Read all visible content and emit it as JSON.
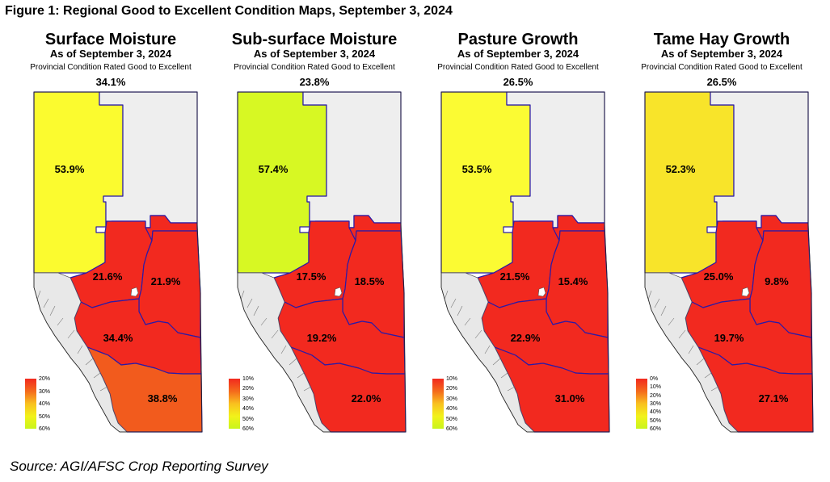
{
  "figure_title": "Figure 1: Regional Good to Excellent Condition Maps, September 3, 2024",
  "source": "Source: AGI/AFSC Crop Reporting Survey",
  "colors": {
    "red": "#f2291f",
    "orange": "#f25b1d",
    "no_data": "#eeeeee",
    "mountains": "#e8e8e8",
    "border": "#2a1aa8",
    "legend_gradient": [
      "#f2291f",
      "#f46a1c",
      "#f9c01f",
      "#f2f21a",
      "#c8f51c"
    ]
  },
  "maps": [
    {
      "title": "Surface Moisture",
      "date": "As of September 3, 2024",
      "note": "Provincial Condition Rated Good to Excellent",
      "total": "34.1%",
      "region_colors": {
        "northwest": "#fbfb2f",
        "northeast": "#eeeeee",
        "northeast_central": "#f2291f",
        "central": "#f2291f",
        "east_central": "#f2291f",
        "south_central": "#f2291f",
        "south": "#f25b1d"
      },
      "regions": {
        "northwest": "53.9%",
        "central": "21.6%",
        "east_central": "21.9%",
        "south_central": "34.4%",
        "south": "38.8%"
      },
      "legend": [
        "20%",
        "30%",
        "40%",
        "50%",
        "60%"
      ]
    },
    {
      "title": "Sub-surface Moisture",
      "date": "As of September 3, 2024",
      "note": "Provincial Condition Rated Good to Excellent",
      "total": "23.8%",
      "region_colors": {
        "northwest": "#d7f823",
        "northeast": "#eeeeee",
        "northeast_central": "#f2291f",
        "central": "#f2291f",
        "east_central": "#f2291f",
        "south_central": "#f2291f",
        "south": "#f2291f"
      },
      "regions": {
        "northwest": "57.4%",
        "central": "17.5%",
        "east_central": "18.5%",
        "south_central": "19.2%",
        "south": "22.0%"
      },
      "legend": [
        "10%",
        "20%",
        "30%",
        "40%",
        "50%",
        "60%"
      ]
    },
    {
      "title": "Pasture Growth",
      "date": "As of September 3, 2024",
      "note": "Provincial Condition Rated Good to Excellent",
      "total": "26.5%",
      "region_colors": {
        "northwest": "#fbfb33",
        "northeast": "#eeeeee",
        "northeast_central": "#f2291f",
        "central": "#f2291f",
        "east_central": "#f2291f",
        "south_central": "#f2291f",
        "south": "#f2291f"
      },
      "regions": {
        "northwest": "53.5%",
        "central": "21.5%",
        "east_central": "15.4%",
        "south_central": "22.9%",
        "south": "31.0%"
      },
      "legend": [
        "10%",
        "20%",
        "30%",
        "40%",
        "50%",
        "60%"
      ]
    },
    {
      "title": "Tame Hay Growth",
      "date": "As of September 3, 2024",
      "note": "Provincial Condition Rated Good to Excellent",
      "total": "26.5%",
      "region_colors": {
        "northwest": "#f8e42a",
        "northeast": "#eeeeee",
        "northeast_central": "#f2291f",
        "central": "#f2291f",
        "east_central": "#f2291f",
        "south_central": "#f2291f",
        "south": "#f2291f"
      },
      "regions": {
        "northwest": "52.3%",
        "central": "25.0%",
        "east_central": "9.8%",
        "south_central": "19.7%",
        "south": "27.1%"
      },
      "legend": [
        "0%",
        "10%",
        "20%",
        "30%",
        "40%",
        "50%",
        "60%"
      ]
    }
  ]
}
